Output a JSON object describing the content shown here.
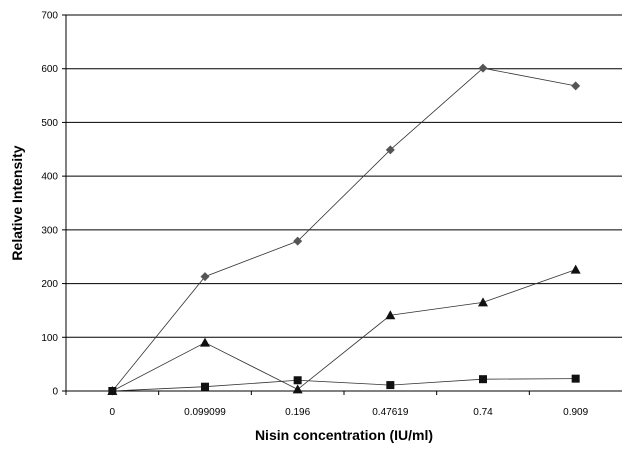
{
  "chart_data": {
    "type": "line",
    "title": "",
    "xlabel": "Nisin concentration (IU/ml)",
    "ylabel": "Relative Intensity",
    "categories": [
      "0",
      "0.099099",
      "0.196",
      "0.47619",
      "0.74",
      "0.909"
    ],
    "ylim": [
      0,
      700
    ],
    "yticks": [
      "0",
      "100",
      "200",
      "300",
      "400",
      "500",
      "600",
      "700"
    ],
    "grid": true,
    "legend": "none",
    "series": [
      {
        "marker": "diamond",
        "color": "#555555",
        "values": [
          0,
          213,
          279,
          449,
          601,
          568
        ]
      },
      {
        "marker": "triangle",
        "color": "#111111",
        "values": [
          0,
          90,
          3,
          141,
          165,
          226
        ]
      },
      {
        "marker": "square",
        "color": "#111111",
        "values": [
          0,
          8,
          20,
          11,
          22,
          23
        ]
      }
    ]
  }
}
